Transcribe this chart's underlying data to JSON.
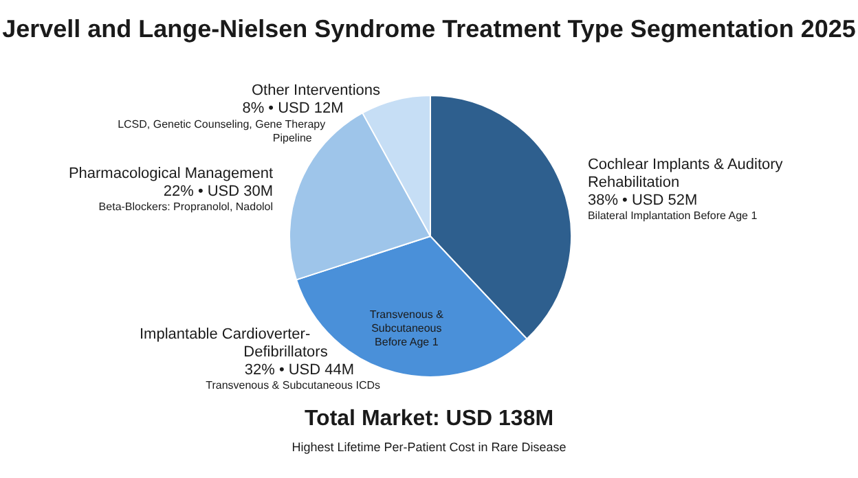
{
  "chart_data": {
    "type": "pie",
    "title": "Jervell and Lange-Nielsen Syndrome Treatment Type Segmentation 2025",
    "categories": [
      "Cochlear Implants & Auditory Rehabilitation",
      "Implantable Cardioverter-Defibrillators",
      "Pharmacological Management",
      "Other Interventions"
    ],
    "values": [
      38,
      32,
      22,
      8
    ],
    "colors": [
      "#2e5f8e",
      "#4a90d9",
      "#9ec5ea",
      "#c6def5"
    ],
    "value_labels": [
      "38% • USD 52M",
      "32% • USD 44M",
      "22% • USD 30M",
      "8% • USD 12M"
    ],
    "legend": false,
    "annotations": [
      {
        "text": "Bilateral Implantation Before Age 1",
        "x": "Cochlear Implants & Auditory Rehabilitation"
      },
      {
        "text": "Transvenous & Subcutaneous ICDs",
        "x": "Implantable Cardioverter-Defibrillators"
      },
      {
        "text": "Beta-Blockers: Propranolol, Nadolol",
        "x": "Pharmacological Management"
      },
      {
        "text": "LCSD, Genetic Counseling, Gene Therapy Pipeline",
        "x": "Other Interventions"
      },
      {
        "text": "Transvenous & Subcutaneous Before Age 1",
        "x": "Implantable Cardioverter-Defibrillators"
      },
      "Total Market: USD 138M",
      "Highest Lifetime Per-Patient Cost in Rare Disease"
    ]
  }
}
